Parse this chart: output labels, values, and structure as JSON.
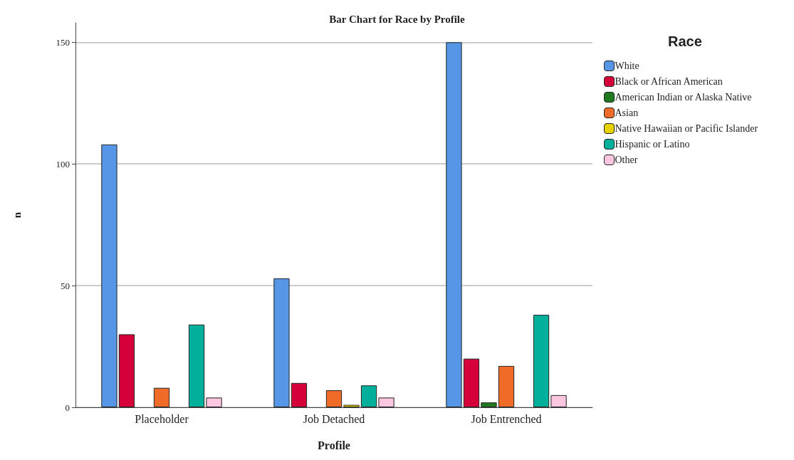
{
  "chart_data": {
    "type": "bar",
    "title": "Bar Chart for Race by Profile",
    "xlabel": "Profile",
    "ylabel": "n",
    "legend_title": "Race",
    "categories": [
      "Placeholder",
      "Job Detached",
      "Job Entrenched"
    ],
    "series": [
      {
        "name": "White",
        "color": "#5596e6",
        "values": [
          108,
          53,
          150
        ]
      },
      {
        "name": "Black or African American",
        "color": "#d5003a",
        "values": [
          30,
          10,
          20
        ]
      },
      {
        "name": "American Indian or Alaska Native",
        "color": "#1f7a1f",
        "values": [
          0,
          0,
          2
        ]
      },
      {
        "name": "Asian",
        "color": "#f06a28",
        "values": [
          8,
          7,
          17
        ]
      },
      {
        "name": "Native Hawaiian or Pacific Islander",
        "color": "#e8d200",
        "values": [
          0,
          1,
          0
        ]
      },
      {
        "name": "Hispanic or Latino",
        "color": "#00b09b",
        "values": [
          34,
          9,
          38
        ]
      },
      {
        "name": "Other",
        "color": "#fcc6e0",
        "values": [
          4,
          4,
          5
        ]
      }
    ],
    "ylim": [
      0,
      158
    ],
    "yticks": [
      0,
      50,
      100,
      150
    ],
    "grid": "y",
    "legend": "top right"
  }
}
